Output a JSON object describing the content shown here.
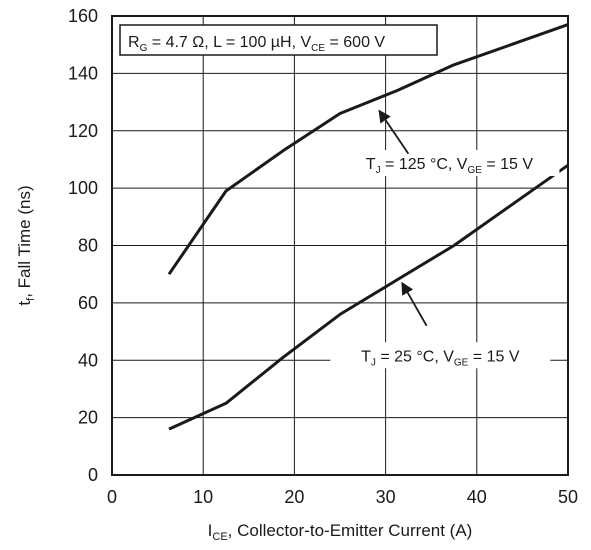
{
  "chart_data": {
    "type": "line",
    "title": "",
    "xlabel": {
      "main": "I",
      "sub": "CE",
      "rest": ", Collector-to-Emitter Current (A)"
    },
    "ylabel": {
      "main": "t",
      "sub": "f",
      "rest": ", Fall Time (ns)"
    },
    "xlim": [
      0,
      50
    ],
    "ylim": [
      0,
      160
    ],
    "x_ticks": [
      0,
      10,
      20,
      30,
      40,
      50
    ],
    "y_ticks": [
      0,
      20,
      40,
      60,
      80,
      100,
      120,
      140,
      160
    ],
    "grid": true,
    "conditions_box": [
      {
        "t": "R",
        "s": ""
      },
      {
        "t": "G",
        "s": "sub"
      },
      {
        "t": " = 4.7 Ω, L = 100 µH, V",
        "s": ""
      },
      {
        "t": "CE",
        "s": "sub"
      },
      {
        "t": " = 600 V",
        "s": ""
      }
    ],
    "series": [
      {
        "label_parts": [
          {
            "t": "T",
            "s": ""
          },
          {
            "t": "J",
            "s": "sub"
          },
          {
            "t": " = 125 °C, V",
            "s": ""
          },
          {
            "t": "GE",
            "s": "sub"
          },
          {
            "t": " = 15 V",
            "s": ""
          }
        ],
        "x": [
          6.25,
          12.5,
          18.75,
          25,
          31.25,
          37.5,
          43.75,
          50
        ],
        "y": [
          70,
          99,
          113,
          126,
          134,
          143,
          150,
          157
        ],
        "annotation": {
          "label_at": [
            37,
            107
          ],
          "arrow_from": [
            32.5,
            112
          ],
          "arrow_to": [
            29.3,
            127
          ]
        }
      },
      {
        "label_parts": [
          {
            "t": "T",
            "s": ""
          },
          {
            "t": "J",
            "s": "sub"
          },
          {
            "t": " = 25 °C, V",
            "s": ""
          },
          {
            "t": "GE",
            "s": "sub"
          },
          {
            "t": " = 15 V",
            "s": ""
          }
        ],
        "x": [
          6.25,
          12.5,
          18.75,
          25,
          31.25,
          37.5,
          43.75,
          50
        ],
        "y": [
          16,
          25,
          41,
          56,
          68,
          80,
          94,
          108
        ],
        "annotation": {
          "label_at": [
            36,
            40
          ],
          "arrow_from": [
            34.5,
            52
          ],
          "arrow_to": [
            31.8,
            67
          ]
        }
      }
    ]
  }
}
